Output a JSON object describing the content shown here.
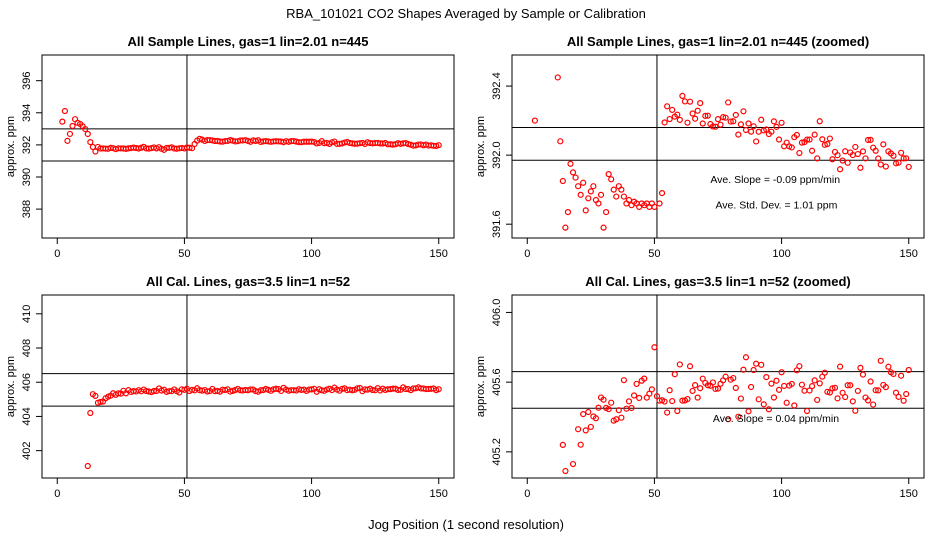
{
  "figure": {
    "title": "RBA_101021  CO2 Shapes Averaged by Sample or Calibration",
    "xlabel": "Jog Position (1 second resolution)"
  },
  "chart_data": [
    {
      "id": "p1",
      "type": "scatter",
      "title": "All Sample Lines, gas=1 lin=2.01 n=445",
      "xlabel": "",
      "ylabel": "approx. ppm",
      "xlim": [
        -6,
        156
      ],
      "ylim": [
        386.2,
        397.6
      ],
      "xticks": [
        0,
        50,
        100,
        150
      ],
      "yticks": [
        388,
        390,
        392,
        394,
        396
      ],
      "hlines": [
        391.0,
        393.0
      ],
      "vlines": [
        51
      ],
      "annotations": [],
      "anchors": [
        [
          2,
          393.5
        ],
        [
          3,
          394.1
        ],
        [
          4,
          392.3
        ],
        [
          5,
          392.7
        ],
        [
          6,
          393.2
        ],
        [
          7,
          393.6
        ],
        [
          8,
          393.4
        ],
        [
          9,
          393.3
        ],
        [
          10,
          393.2
        ],
        [
          11,
          393.0
        ],
        [
          12,
          392.6
        ],
        [
          13,
          392.2
        ],
        [
          14,
          391.9
        ],
        [
          15,
          391.6
        ],
        [
          16,
          391.8
        ],
        [
          20,
          391.8
        ],
        [
          52,
          391.8
        ],
        [
          53,
          391.8
        ],
        [
          55,
          392.3
        ],
        [
          150,
          392.0
        ]
      ],
      "noise": 0.05,
      "seed": 11
    },
    {
      "id": "p2",
      "type": "scatter",
      "title": "All Sample Lines, gas=1 lin=2.01 n=445 (zoomed)",
      "xlabel": "",
      "ylabel": "approx. ppm",
      "xlim": [
        -6,
        156
      ],
      "ylim": [
        391.52,
        392.58
      ],
      "xticks": [
        0,
        50,
        100,
        150
      ],
      "yticks": [
        391.6,
        392.0,
        392.4
      ],
      "hlines": [
        391.97,
        392.16
      ],
      "vlines": [
        51
      ],
      "annotations": [
        {
          "text": "Ave. Slope =  -0.09  ppm/min",
          "x": 72,
          "y": 391.84
        },
        {
          "text": "Ave. Std. Dev. =  1.01  ppm",
          "x": 74,
          "y": 391.69
        }
      ],
      "points": [
        [
          3,
          392.2
        ],
        [
          12,
          392.45
        ],
        [
          13,
          392.08
        ],
        [
          14,
          391.85
        ],
        [
          15,
          391.58
        ],
        [
          16,
          391.67
        ],
        [
          17,
          391.95
        ],
        [
          18,
          391.9
        ],
        [
          19,
          391.87
        ],
        [
          20,
          391.82
        ],
        [
          21,
          391.77
        ],
        [
          22,
          391.84
        ],
        [
          23,
          391.68
        ],
        [
          24,
          391.75
        ],
        [
          25,
          391.79
        ],
        [
          26,
          391.82
        ],
        [
          27,
          391.74
        ],
        [
          28,
          391.72
        ],
        [
          29,
          391.77
        ],
        [
          30,
          391.58
        ],
        [
          31,
          391.67
        ],
        [
          32,
          391.89
        ],
        [
          33,
          391.86
        ],
        [
          34,
          391.8
        ],
        [
          35,
          391.76
        ],
        [
          36,
          391.82
        ],
        [
          37,
          391.8
        ],
        [
          38,
          391.76
        ],
        [
          39,
          391.72
        ],
        [
          40,
          391.74
        ],
        [
          41,
          391.71
        ],
        [
          42,
          391.73
        ],
        [
          43,
          391.72
        ],
        [
          44,
          391.7
        ],
        [
          45,
          391.72
        ],
        [
          46,
          391.71
        ],
        [
          47,
          391.72
        ],
        [
          48,
          391.7
        ],
        [
          49,
          391.72
        ],
        [
          50,
          391.7
        ],
        [
          52,
          391.72
        ],
        [
          53,
          391.78
        ]
      ],
      "anchors": [
        [
          54,
          392.22
        ],
        [
          60,
          392.28
        ],
        [
          80,
          392.2
        ],
        [
          100,
          392.1
        ],
        [
          120,
          392.05
        ],
        [
          150,
          391.98
        ]
      ],
      "noise": 0.06,
      "seed": 23
    },
    {
      "id": "p3",
      "type": "scatter",
      "title": "All Cal. Lines, gas=3.5 lin=1 n=52",
      "xlabel": "",
      "ylabel": "approx. ppm",
      "xlim": [
        -6,
        156
      ],
      "ylim": [
        400.4,
        411.1
      ],
      "xticks": [
        0,
        50,
        100,
        150
      ],
      "yticks": [
        402,
        404,
        406,
        408,
        410
      ],
      "hlines": [
        404.6,
        406.5
      ],
      "vlines": [
        51
      ],
      "annotations": [],
      "points": [
        [
          12,
          401.1
        ],
        [
          13,
          404.2
        ],
        [
          14,
          405.3
        ],
        [
          15,
          405.2
        ],
        [
          16,
          404.8
        ]
      ],
      "anchors": [
        [
          17,
          404.9
        ],
        [
          19,
          405.1
        ],
        [
          22,
          405.3
        ],
        [
          30,
          405.5
        ],
        [
          150,
          405.6
        ]
      ],
      "noise": 0.07,
      "seed": 37
    },
    {
      "id": "p4",
      "type": "scatter",
      "title": "All Cal. Lines, gas=3.5 lin=1 n=52 (zoomed)",
      "xlabel": "",
      "ylabel": "approx. ppm",
      "xlim": [
        -6,
        156
      ],
      "ylim": [
        405.05,
        406.1
      ],
      "xticks": [
        0,
        50,
        100,
        150
      ],
      "yticks": [
        405.2,
        405.6,
        406.0
      ],
      "hlines": [
        405.45,
        405.66
      ],
      "vlines": [
        51
      ],
      "annotations": [
        {
          "text": "Ave. Slope =  0.04  ppm/min",
          "x": 73,
          "y": 405.37
        }
      ],
      "points": [
        [
          14,
          405.24
        ],
        [
          15,
          405.09
        ],
        [
          18,
          405.13
        ],
        [
          20,
          405.33
        ],
        [
          50,
          405.8
        ]
      ],
      "anchors": [
        [
          20,
          405.38
        ],
        [
          30,
          405.5
        ],
        [
          60,
          405.55
        ],
        [
          100,
          405.57
        ],
        [
          150,
          405.58
        ]
      ],
      "noise": 0.09,
      "seed": 53
    }
  ]
}
